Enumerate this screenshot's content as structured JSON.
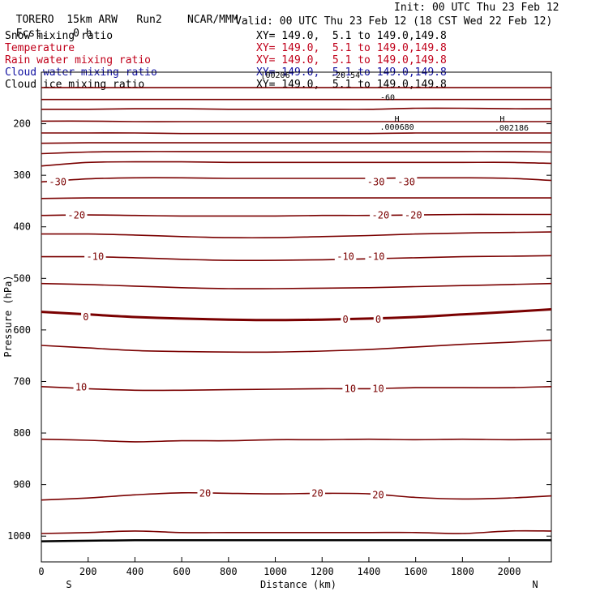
{
  "header": {
    "model": "TORERO",
    "resolution": "15km ARW",
    "run": "Run2",
    "org": "NCAR/MMM",
    "init": "Init: 00 UTC Thu 23 Feb 12",
    "fcst": "Fcst.",
    "fcst_value": "0 h",
    "valid": "Valid: 00 UTC Thu 23 Feb 12 (18 CST Wed 22 Feb 12)"
  },
  "fields": [
    {
      "name": "Snow mixing ratio",
      "xy": "XY= 149.0,  5.1 to 149.0,149.8",
      "color": "#000000"
    },
    {
      "name": "Temperature",
      "xy": "XY= 149.0,  5.1 to 149.0,149.8",
      "color": "#c0001a"
    },
    {
      "name": "Rain water mixing ratio",
      "xy": "XY= 149.0,  5.1 to 149.0,149.8",
      "color": "#c0001a"
    },
    {
      "name": "Cloud water mixing ratio",
      "xy": "XY= 149.0,  5.1 to 149.0,149.8",
      "color": "#1010a0"
    },
    {
      "name": "Cloud ice mixing ratio",
      "xy": "XY= 149.0,  5.1 to 149.0,149.8",
      "color": "#000000"
    }
  ],
  "chart_data": {
    "type": "contour",
    "xlabel": "Distance (km)",
    "ylabel": "Pressure (hPa)",
    "xlim": [
      0,
      2180
    ],
    "ylim": [
      1050,
      100
    ],
    "x_ticks": [
      0,
      200,
      400,
      600,
      800,
      1000,
      1200,
      1400,
      1600,
      1800,
      2000
    ],
    "y_ticks": [
      200,
      300,
      400,
      500,
      600,
      700,
      800,
      900,
      1000
    ],
    "x_end_labels": {
      "left": "S",
      "right": "N"
    },
    "contour_color": "#7a0000",
    "contour_x": [
      0,
      200,
      400,
      600,
      800,
      1000,
      1200,
      1400,
      1600,
      1800,
      2000,
      2180
    ],
    "temperature_contours": [
      {
        "pressure": [
          130,
          130,
          130,
          130,
          130,
          130,
          130,
          130,
          130,
          130,
          130,
          130
        ]
      },
      {
        "pressure": [
          153,
          153,
          153,
          153,
          153,
          153,
          153,
          153,
          153,
          153,
          153,
          153
        ]
      },
      {
        "pressure": [
          172,
          172,
          171,
          171,
          172,
          172,
          172,
          172,
          170,
          170,
          171,
          171
        ]
      },
      {
        "pressure": [
          195,
          195,
          196,
          196,
          196,
          196,
          196,
          196,
          196,
          196,
          196,
          196
        ]
      },
      {
        "pressure": [
          218,
          218,
          218,
          219,
          219,
          219,
          219,
          219,
          218,
          218,
          218,
          218
        ]
      },
      {
        "pressure": [
          238,
          237,
          237,
          237,
          237,
          237,
          237,
          237,
          237,
          237,
          237,
          237
        ]
      },
      {
        "pressure": [
          258,
          255,
          254,
          254,
          254,
          254,
          254,
          254,
          254,
          254,
          254,
          255
        ]
      },
      {
        "pressure": [
          282,
          275,
          274,
          274,
          275,
          275,
          275,
          275,
          275,
          275,
          275,
          277
        ]
      },
      {
        "pressure": [
          313,
          307,
          305,
          305,
          306,
          306,
          306,
          306,
          305,
          305,
          306,
          310
        ]
      },
      {
        "pressure": [
          345,
          344,
          344,
          344,
          344,
          344,
          344,
          344,
          344,
          344,
          344,
          344
        ],
        "label": "-30"
      },
      {
        "pressure": [
          378,
          377,
          378,
          379,
          379,
          379,
          378,
          378,
          377,
          376,
          376,
          376
        ],
        "label": "-20"
      },
      {
        "pressure": [
          414,
          414,
          416,
          419,
          421,
          421,
          419,
          417,
          414,
          412,
          411,
          410
        ]
      },
      {
        "pressure": [
          458,
          458,
          460,
          463,
          465,
          465,
          464,
          462,
          460,
          458,
          457,
          456
        ],
        "label": "-10"
      },
      {
        "pressure": [
          510,
          512,
          515,
          518,
          520,
          520,
          519,
          518,
          516,
          514,
          512,
          510
        ]
      },
      {
        "pressure": [
          565,
          570,
          575,
          578,
          580,
          581,
          580,
          578,
          575,
          570,
          565,
          560
        ],
        "label": "0",
        "bold": true
      },
      {
        "pressure": [
          630,
          635,
          640,
          642,
          643,
          643,
          641,
          638,
          633,
          628,
          624,
          620
        ]
      },
      {
        "pressure": [
          710,
          714,
          717,
          717,
          716,
          715,
          714,
          714,
          712,
          712,
          712,
          710
        ],
        "label": "10"
      },
      {
        "pressure": [
          812,
          814,
          817,
          815,
          815,
          813,
          813,
          812,
          813,
          812,
          813,
          812
        ]
      },
      {
        "pressure": [
          930,
          926,
          920,
          916,
          917,
          918,
          917,
          918,
          925,
          928,
          926,
          922
        ],
        "label": "20"
      },
      {
        "pressure": [
          995,
          993,
          990,
          993,
          993,
          993,
          993,
          993,
          993,
          995,
          990,
          990
        ]
      }
    ],
    "surface_pressure": [
      1010,
      1009,
      1008,
      1008,
      1008,
      1008,
      1008,
      1008,
      1008,
      1008,
      1008,
      1008
    ],
    "contour_labels": [
      {
        "x": 70,
        "p": 313,
        "text": "-30"
      },
      {
        "x": 1430,
        "p": 313,
        "text": "-30"
      },
      {
        "x": 1560,
        "p": 313,
        "text": "-30"
      },
      {
        "x": 150,
        "p": 378,
        "text": "-20"
      },
      {
        "x": 1450,
        "p": 378,
        "text": "-20"
      },
      {
        "x": 1590,
        "p": 378,
        "text": "-20"
      },
      {
        "x": 230,
        "p": 458,
        "text": "-10"
      },
      {
        "x": 1300,
        "p": 458,
        "text": "-10"
      },
      {
        "x": 1430,
        "p": 458,
        "text": "-10"
      },
      {
        "x": 190,
        "p": 575,
        "text": "0"
      },
      {
        "x": 1300,
        "p": 580,
        "text": "0"
      },
      {
        "x": 1440,
        "p": 580,
        "text": "0"
      },
      {
        "x": 170,
        "p": 711,
        "text": "10"
      },
      {
        "x": 1320,
        "p": 714,
        "text": "10"
      },
      {
        "x": 1440,
        "p": 714,
        "text": "10"
      },
      {
        "x": 700,
        "p": 917,
        "text": "20"
      },
      {
        "x": 1180,
        "p": 917,
        "text": "20"
      },
      {
        "x": 1440,
        "p": 920,
        "text": "20"
      }
    ],
    "top_annotations": [
      {
        "x": 1000,
        "p": 105,
        "text": "[00206"
      },
      {
        "x": 1300,
        "p": 105,
        "text": "-20.54"
      },
      {
        "x": 1480,
        "p": 148,
        "text": "-60"
      },
      {
        "x": 1520,
        "p": 190,
        "text": "H"
      },
      {
        "x": 1520,
        "p": 205,
        "text": ".000680"
      },
      {
        "x": 1970,
        "p": 190,
        "text": "H"
      },
      {
        "x": 2010,
        "p": 207,
        "text": ".002186"
      }
    ]
  }
}
